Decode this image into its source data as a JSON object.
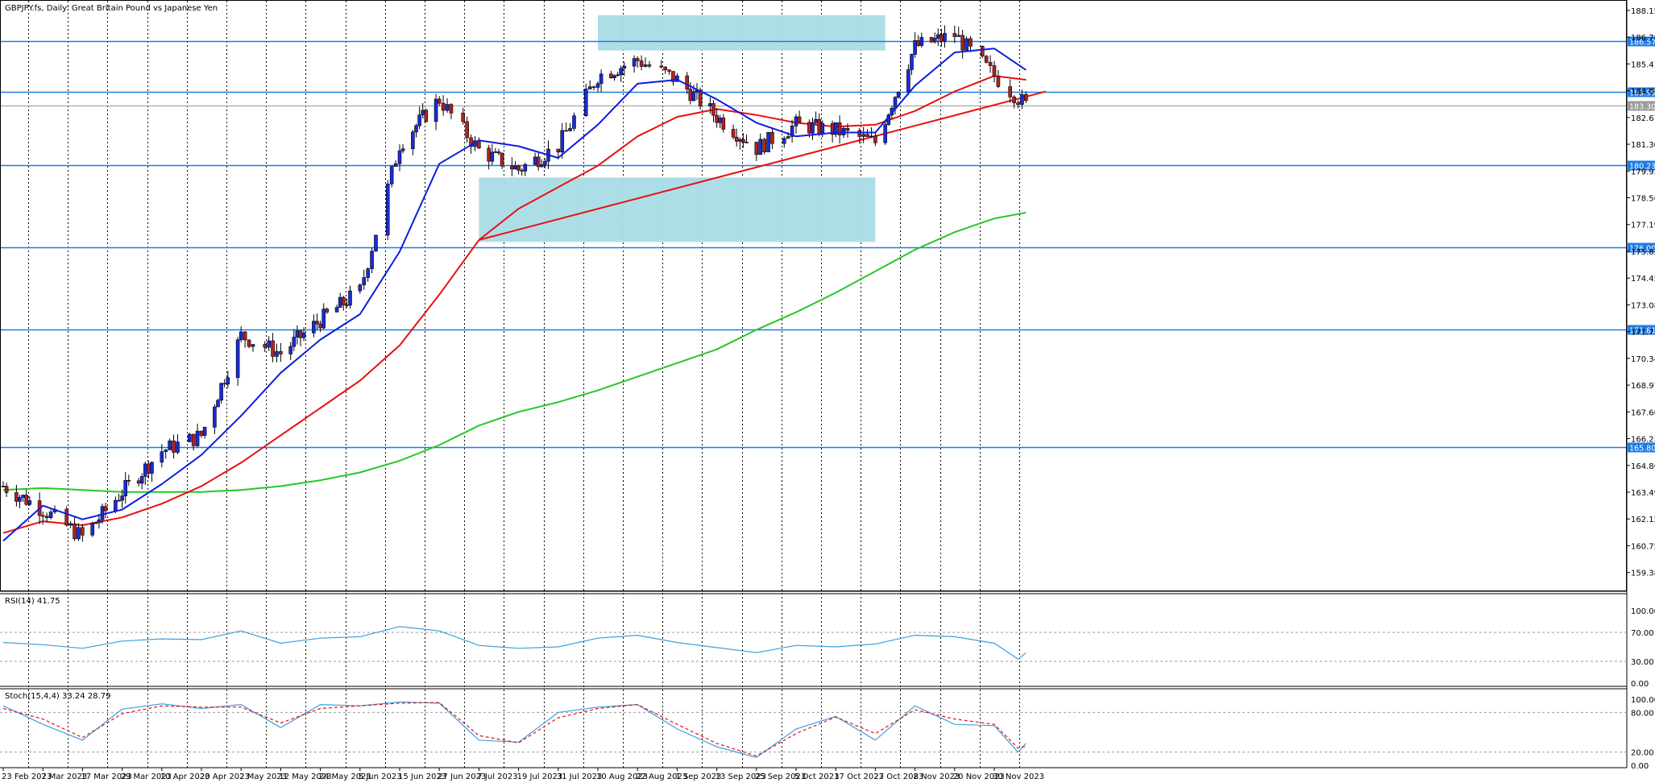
{
  "chart_title": "GBPJPY.fs, Daily:  Great Britain Pound vs Japanese Yen",
  "rsi_title": "RSI(14) 41.75",
  "stoch_title": "Stoch(15,4,4) 33.24 28.79",
  "colors": {
    "bull": "#1a2dd8",
    "bear": "#b22222",
    "sma_short": "#0a1ee0",
    "sma_mid": "#e81010",
    "sma_long": "#26c826",
    "hline": "#1e7be6",
    "zone": "#a9dce6",
    "trendline": "#e81010",
    "osc": "#3aa0e0",
    "signal": "#e81010"
  },
  "chart_data": {
    "type": "candlestick",
    "price_axis_ticks": [
      "188.150",
      "186.780",
      "185.410",
      "184.040",
      "182.670",
      "181.300",
      "179.930",
      "178.560",
      "177.190",
      "175.820",
      "174.450",
      "173.080",
      "171.710",
      "170.340",
      "168.970",
      "167.600",
      "166.230",
      "164.860",
      "163.490",
      "162.120",
      "160.750",
      "159.380"
    ],
    "ylim": [
      158.5,
      188.6
    ],
    "horizontal_levels": [
      {
        "value": 186.574,
        "label": "186.574"
      },
      {
        "value": 183.999,
        "label": "183.999"
      },
      {
        "value": 183.3,
        "label": "183.300",
        "current": true
      },
      {
        "value": 180.238,
        "label": "180.238"
      },
      {
        "value": 176.008,
        "label": "176.008"
      },
      {
        "value": 171.811,
        "label": "171.811"
      },
      {
        "value": 165.803,
        "label": "165.803"
      }
    ],
    "date_labels": [
      "23 Feb 2023",
      "7 Mar 2023",
      "17 Mar 2023",
      "29 Mar 2023",
      "10 Apr 2023",
      "20 Apr 2023",
      "2 May 2023",
      "12 May 2023",
      "24 May 2023",
      "5 Jun 2023",
      "15 Jun 2023",
      "27 Jun 2023",
      "7 Jul 2023",
      "19 Jul 2023",
      "31 Jul 2023",
      "10 Aug 2023",
      "22 Aug 2023",
      "1 Sep 2023",
      "13 Sep 2023",
      "25 Sep 2023",
      "5 Oct 2023",
      "17 Oct 2023",
      "27 Oct 2023",
      "8 Nov 2023",
      "20 Nov 2023",
      "30 Nov 2023"
    ],
    "close_path": [
      {
        "date": "23 Feb 2023",
        "close": 163.8
      },
      {
        "date": "7 Mar 2023",
        "close": 162.6
      },
      {
        "date": "17 Mar 2023",
        "close": 161.2
      },
      {
        "date": "29 Mar 2023",
        "close": 163.5
      },
      {
        "date": "10 Apr 2023",
        "close": 165.6
      },
      {
        "date": "20 Apr 2023",
        "close": 166.4
      },
      {
        "date": "2 May 2023",
        "close": 171.5
      },
      {
        "date": "12 May 2023",
        "close": 170.6
      },
      {
        "date": "24 May 2023",
        "close": 172.3
      },
      {
        "date": "5 Jun 2023",
        "close": 173.8
      },
      {
        "date": "15 Jun 2023",
        "close": 181.3
      },
      {
        "date": "27 Jun 2023",
        "close": 183.6
      },
      {
        "date": "7 Jul 2023",
        "close": 181.0
      },
      {
        "date": "19 Jul 2023",
        "close": 180.0
      },
      {
        "date": "31 Jul 2023",
        "close": 181.2
      },
      {
        "date": "10 Aug 2023",
        "close": 184.8
      },
      {
        "date": "22 Aug 2023",
        "close": 185.6
      },
      {
        "date": "1 Sep 2023",
        "close": 184.6
      },
      {
        "date": "13 Sep 2023",
        "close": 182.7
      },
      {
        "date": "25 Sep 2023",
        "close": 181.1
      },
      {
        "date": "5 Oct 2023",
        "close": 182.3
      },
      {
        "date": "17 Oct 2023",
        "close": 182.0
      },
      {
        "date": "27 Oct 2023",
        "close": 181.4
      },
      {
        "date": "8 Nov 2023",
        "close": 186.3
      },
      {
        "date": "20 Nov 2023",
        "close": 186.9
      },
      {
        "date": "30 Nov 2023",
        "close": 184.8
      },
      {
        "date": "8 Dec 2023",
        "close": 183.3
      }
    ],
    "sma_short": [
      {
        "date": "23 Feb 2023",
        "value": 161.0
      },
      {
        "date": "7 Mar 2023",
        "value": 162.8
      },
      {
        "date": "17 Mar 2023",
        "value": 162.1
      },
      {
        "date": "29 Mar 2023",
        "value": 162.6
      },
      {
        "date": "10 Apr 2023",
        "value": 163.9
      },
      {
        "date": "20 Apr 2023",
        "value": 165.4
      },
      {
        "date": "2 May 2023",
        "value": 167.4
      },
      {
        "date": "12 May 2023",
        "value": 169.6
      },
      {
        "date": "24 May 2023",
        "value": 171.3
      },
      {
        "date": "5 Jun 2023",
        "value": 172.6
      },
      {
        "date": "15 Jun 2023",
        "value": 175.8
      },
      {
        "date": "27 Jun 2023",
        "value": 180.3
      },
      {
        "date": "7 Jul 2023",
        "value": 181.5
      },
      {
        "date": "19 Jul 2023",
        "value": 181.2
      },
      {
        "date": "31 Jul 2023",
        "value": 180.6
      },
      {
        "date": "10 Aug 2023",
        "value": 182.3
      },
      {
        "date": "22 Aug 2023",
        "value": 184.4
      },
      {
        "date": "1 Sep 2023",
        "value": 184.6
      },
      {
        "date": "13 Sep 2023",
        "value": 183.6
      },
      {
        "date": "25 Sep 2023",
        "value": 182.4
      },
      {
        "date": "5 Oct 2023",
        "value": 181.7
      },
      {
        "date": "17 Oct 2023",
        "value": 181.9
      },
      {
        "date": "27 Oct 2023",
        "value": 181.9
      },
      {
        "date": "8 Nov 2023",
        "value": 184.3
      },
      {
        "date": "20 Nov 2023",
        "value": 186.0
      },
      {
        "date": "30 Nov 2023",
        "value": 186.2
      },
      {
        "date": "8 Dec 2023",
        "value": 185.1
      }
    ],
    "sma_mid": [
      {
        "date": "23 Feb 2023",
        "value": 161.4
      },
      {
        "date": "7 Mar 2023",
        "value": 162.0
      },
      {
        "date": "17 Mar 2023",
        "value": 161.8
      },
      {
        "date": "29 Mar 2023",
        "value": 162.2
      },
      {
        "date": "10 Apr 2023",
        "value": 162.9
      },
      {
        "date": "20 Apr 2023",
        "value": 163.8
      },
      {
        "date": "2 May 2023",
        "value": 165.0
      },
      {
        "date": "12 May 2023",
        "value": 166.4
      },
      {
        "date": "24 May 2023",
        "value": 167.8
      },
      {
        "date": "5 Jun 2023",
        "value": 169.2
      },
      {
        "date": "15 Jun 2023",
        "value": 171.0
      },
      {
        "date": "27 Jun 2023",
        "value": 173.6
      },
      {
        "date": "7 Jul 2023",
        "value": 176.4
      },
      {
        "date": "19 Jul 2023",
        "value": 178.0
      },
      {
        "date": "31 Jul 2023",
        "value": 179.1
      },
      {
        "date": "10 Aug 2023",
        "value": 180.2
      },
      {
        "date": "22 Aug 2023",
        "value": 181.7
      },
      {
        "date": "1 Sep 2023",
        "value": 182.7
      },
      {
        "date": "13 Sep 2023",
        "value": 183.1
      },
      {
        "date": "25 Sep 2023",
        "value": 182.8
      },
      {
        "date": "5 Oct 2023",
        "value": 182.4
      },
      {
        "date": "17 Oct 2023",
        "value": 182.2
      },
      {
        "date": "27 Oct 2023",
        "value": 182.3
      },
      {
        "date": "8 Nov 2023",
        "value": 183.0
      },
      {
        "date": "20 Nov 2023",
        "value": 184.0
      },
      {
        "date": "30 Nov 2023",
        "value": 184.8
      },
      {
        "date": "8 Dec 2023",
        "value": 184.6
      }
    ],
    "sma_long": [
      {
        "date": "23 Feb 2023",
        "value": 163.6
      },
      {
        "date": "7 Mar 2023",
        "value": 163.7
      },
      {
        "date": "17 Mar 2023",
        "value": 163.6
      },
      {
        "date": "29 Mar 2023",
        "value": 163.5
      },
      {
        "date": "10 Apr 2023",
        "value": 163.5
      },
      {
        "date": "20 Apr 2023",
        "value": 163.5
      },
      {
        "date": "2 May 2023",
        "value": 163.6
      },
      {
        "date": "12 May 2023",
        "value": 163.8
      },
      {
        "date": "24 May 2023",
        "value": 164.1
      },
      {
        "date": "5 Jun 2023",
        "value": 164.5
      },
      {
        "date": "15 Jun 2023",
        "value": 165.1
      },
      {
        "date": "27 Jun 2023",
        "value": 165.9
      },
      {
        "date": "7 Jul 2023",
        "value": 166.9
      },
      {
        "date": "19 Jul 2023",
        "value": 167.6
      },
      {
        "date": "31 Jul 2023",
        "value": 168.1
      },
      {
        "date": "10 Aug 2023",
        "value": 168.7
      },
      {
        "date": "22 Aug 2023",
        "value": 169.4
      },
      {
        "date": "1 Sep 2023",
        "value": 170.1
      },
      {
        "date": "13 Sep 2023",
        "value": 170.8
      },
      {
        "date": "25 Sep 2023",
        "value": 171.8
      },
      {
        "date": "5 Oct 2023",
        "value": 172.7
      },
      {
        "date": "17 Oct 2023",
        "value": 173.7
      },
      {
        "date": "27 Oct 2023",
        "value": 174.8
      },
      {
        "date": "8 Nov 2023",
        "value": 175.9
      },
      {
        "date": "20 Nov 2023",
        "value": 176.8
      },
      {
        "date": "30 Nov 2023",
        "value": 177.5
      },
      {
        "date": "8 Dec 2023",
        "value": 177.8
      }
    ],
    "trendline": {
      "start": {
        "date": "7 Jul 2023",
        "value": 176.4
      },
      "end": {
        "date": "13 Dec 2023",
        "value": 184.0
      }
    },
    "zones": [
      {
        "from": "10 Aug 2023",
        "to": "27 Oct 2023 +3d",
        "top": 187.9,
        "bottom": 186.1
      },
      {
        "from": "7 Jul 2023",
        "to": "27 Oct 2023",
        "top": 179.6,
        "bottom": 176.3
      }
    ],
    "rsi": {
      "ticks": [
        "100.00",
        "70.00",
        "30.00",
        "0.00"
      ],
      "levels": [
        70,
        30
      ],
      "last": 41.75,
      "values": [
        {
          "date": "23 Feb 2023",
          "value": 56
        },
        {
          "date": "7 Mar 2023",
          "value": 53
        },
        {
          "date": "17 Mar 2023",
          "value": 48
        },
        {
          "date": "29 Mar 2023",
          "value": 58
        },
        {
          "date": "10 Apr 2023",
          "value": 61
        },
        {
          "date": "20 Apr 2023",
          "value": 60
        },
        {
          "date": "2 May 2023",
          "value": 72
        },
        {
          "date": "12 May 2023",
          "value": 55
        },
        {
          "date": "24 May 2023",
          "value": 62
        },
        {
          "date": "5 Jun 2023",
          "value": 64
        },
        {
          "date": "15 Jun 2023",
          "value": 78
        },
        {
          "date": "27 Jun 2023",
          "value": 72
        },
        {
          "date": "7 Jul 2023",
          "value": 52
        },
        {
          "date": "19 Jul 2023",
          "value": 48
        },
        {
          "date": "31 Jul 2023",
          "value": 50
        },
        {
          "date": "10 Aug 2023",
          "value": 62
        },
        {
          "date": "22 Aug 2023",
          "value": 66
        },
        {
          "date": "1 Sep 2023",
          "value": 56
        },
        {
          "date": "13 Sep 2023",
          "value": 49
        },
        {
          "date": "25 Sep 2023",
          "value": 42
        },
        {
          "date": "5 Oct 2023",
          "value": 52
        },
        {
          "date": "17 Oct 2023",
          "value": 50
        },
        {
          "date": "27 Oct 2023",
          "value": 54
        },
        {
          "date": "8 Nov 2023",
          "value": 66
        },
        {
          "date": "20 Nov 2023",
          "value": 64
        },
        {
          "date": "30 Nov 2023",
          "value": 55
        },
        {
          "date": "6 Dec 2023",
          "value": 33
        },
        {
          "date": "8 Dec 2023",
          "value": 41.75
        }
      ]
    },
    "stochastic": {
      "ticks": [
        "100.00",
        "80.00",
        "20.00",
        "0.00"
      ],
      "levels": [
        80,
        20
      ],
      "main_last": 33.24,
      "signal_last": 28.79,
      "main": [
        {
          "date": "23 Feb 2023",
          "value": 90
        },
        {
          "date": "7 Mar 2023",
          "value": 62
        },
        {
          "date": "17 Mar 2023",
          "value": 38
        },
        {
          "date": "29 Mar 2023",
          "value": 85
        },
        {
          "date": "10 Apr 2023",
          "value": 93
        },
        {
          "date": "20 Apr 2023",
          "value": 86
        },
        {
          "date": "2 May 2023",
          "value": 92
        },
        {
          "date": "12 May 2023",
          "value": 57
        },
        {
          "date": "24 May 2023",
          "value": 92
        },
        {
          "date": "5 Jun 2023",
          "value": 90
        },
        {
          "date": "15 Jun 2023",
          "value": 96
        },
        {
          "date": "27 Jun 2023",
          "value": 94
        },
        {
          "date": "7 Jul 2023",
          "value": 38
        },
        {
          "date": "19 Jul 2023",
          "value": 35
        },
        {
          "date": "31 Jul 2023",
          "value": 80
        },
        {
          "date": "10 Aug 2023",
          "value": 88
        },
        {
          "date": "22 Aug 2023",
          "value": 92
        },
        {
          "date": "1 Sep 2023",
          "value": 55
        },
        {
          "date": "13 Sep 2023",
          "value": 28
        },
        {
          "date": "25 Sep 2023",
          "value": 12
        },
        {
          "date": "5 Oct 2023",
          "value": 55
        },
        {
          "date": "17 Oct 2023",
          "value": 74
        },
        {
          "date": "27 Oct 2023",
          "value": 38
        },
        {
          "date": "8 Nov 2023",
          "value": 90
        },
        {
          "date": "20 Nov 2023",
          "value": 62
        },
        {
          "date": "30 Nov 2023",
          "value": 60
        },
        {
          "date": "6 Dec 2023",
          "value": 20
        },
        {
          "date": "8 Dec 2023",
          "value": 33.24
        }
      ],
      "signal": [
        {
          "date": "23 Feb 2023",
          "value": 86
        },
        {
          "date": "7 Mar 2023",
          "value": 70
        },
        {
          "date": "17 Mar 2023",
          "value": 42
        },
        {
          "date": "29 Mar 2023",
          "value": 78
        },
        {
          "date": "10 Apr 2023",
          "value": 90
        },
        {
          "date": "20 Apr 2023",
          "value": 88
        },
        {
          "date": "2 May 2023",
          "value": 88
        },
        {
          "date": "12 May 2023",
          "value": 64
        },
        {
          "date": "24 May 2023",
          "value": 86
        },
        {
          "date": "5 Jun 2023",
          "value": 90
        },
        {
          "date": "15 Jun 2023",
          "value": 94
        },
        {
          "date": "27 Jun 2023",
          "value": 95
        },
        {
          "date": "7 Jul 2023",
          "value": 45
        },
        {
          "date": "19 Jul 2023",
          "value": 34
        },
        {
          "date": "31 Jul 2023",
          "value": 72
        },
        {
          "date": "10 Aug 2023",
          "value": 86
        },
        {
          "date": "22 Aug 2023",
          "value": 92
        },
        {
          "date": "1 Sep 2023",
          "value": 62
        },
        {
          "date": "13 Sep 2023",
          "value": 33
        },
        {
          "date": "25 Sep 2023",
          "value": 14
        },
        {
          "date": "5 Oct 2023",
          "value": 48
        },
        {
          "date": "17 Oct 2023",
          "value": 73
        },
        {
          "date": "27 Oct 2023",
          "value": 48
        },
        {
          "date": "8 Nov 2023",
          "value": 84
        },
        {
          "date": "20 Nov 2023",
          "value": 70
        },
        {
          "date": "30 Nov 2023",
          "value": 62
        },
        {
          "date": "6 Dec 2023",
          "value": 26
        },
        {
          "date": "8 Dec 2023",
          "value": 28.79
        }
      ]
    }
  }
}
